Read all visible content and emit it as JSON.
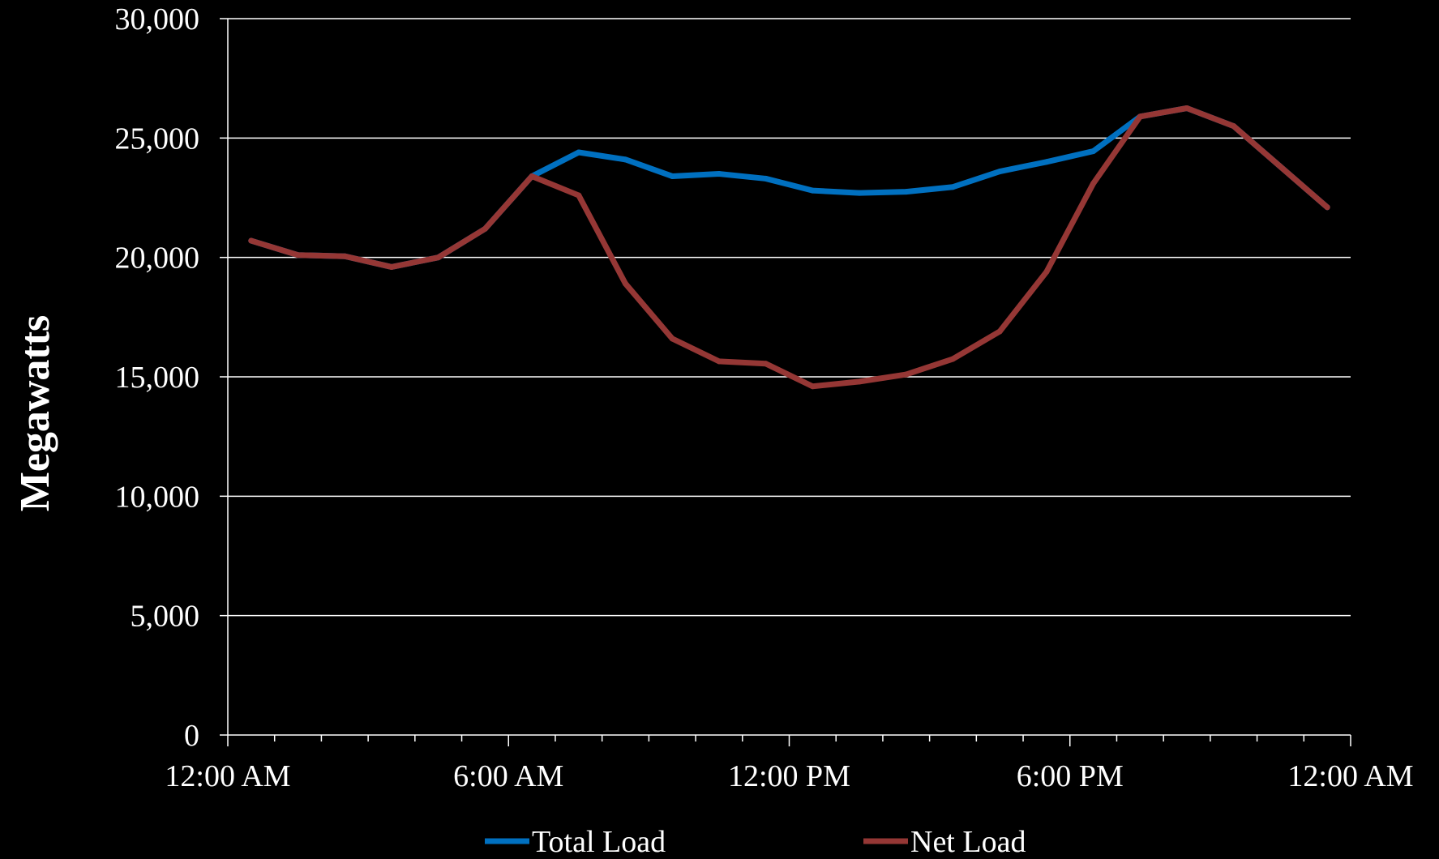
{
  "chart_data": {
    "type": "line",
    "title": "",
    "xlabel": "",
    "ylabel": "Megawatts",
    "ylim": [
      0,
      30000
    ],
    "xlim": [
      0,
      24
    ],
    "x_unit": "hour of day",
    "yticks": [
      "0",
      "5,000",
      "10,000",
      "15,000",
      "20,000",
      "25,000",
      "30,000"
    ],
    "ytick_values": [
      0,
      5000,
      10000,
      15000,
      20000,
      25000,
      30000
    ],
    "xticks": [
      "12:00 AM",
      "6:00 AM",
      "12:00 PM",
      "6:00 PM",
      "12:00 AM"
    ],
    "xtick_values": [
      0,
      6,
      12,
      18,
      24
    ],
    "grid": "horizontal",
    "legend_position": "bottom",
    "x": [
      0.5,
      1.5,
      2.5,
      3.5,
      4.5,
      5.5,
      6.5,
      7.5,
      8.5,
      9.5,
      10.5,
      11.5,
      12.5,
      13.5,
      14.5,
      15.5,
      16.5,
      17.5,
      18.5,
      19.5,
      20.5,
      21.5,
      22.5,
      23.5
    ],
    "series": [
      {
        "name": "Total Load",
        "color": "#0070C0",
        "values": [
          20700,
          20100,
          20050,
          19600,
          20000,
          21200,
          23400,
          24400,
          24100,
          23400,
          23500,
          23300,
          22800,
          22700,
          22750,
          22950,
          23600,
          24000,
          24450,
          25900,
          26250,
          25500,
          23800,
          22100
        ]
      },
      {
        "name": "Net Load",
        "color": "#953735",
        "values": [
          20700,
          20100,
          20050,
          19600,
          20000,
          21200,
          23400,
          22600,
          18900,
          16600,
          15650,
          15550,
          14600,
          14800,
          15100,
          15750,
          16900,
          19400,
          23100,
          25900,
          26250,
          25500,
          23800,
          22100
        ]
      }
    ]
  }
}
